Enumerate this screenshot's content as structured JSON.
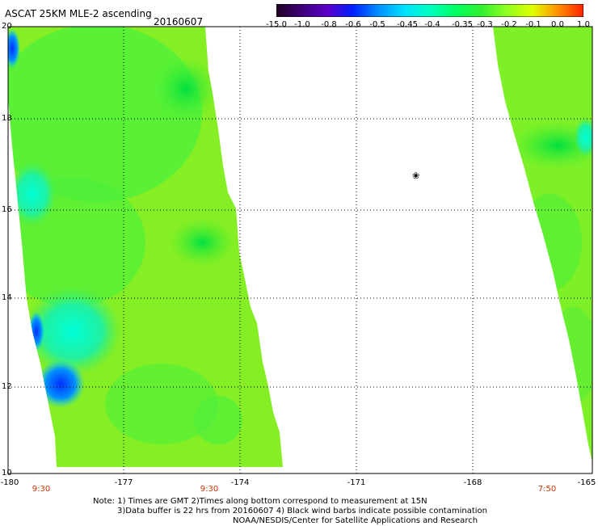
{
  "header": {
    "title": "ASCAT 25KM MLE-2 ascending",
    "date": "20160607"
  },
  "colorbar": {
    "labels": [
      "-15.0",
      "-1.0",
      "-0.8",
      "-0.6",
      "-0.5",
      "-0.45",
      "-0.4",
      "-0.35",
      "-0.3",
      "-0.2",
      "-0.1",
      "0.0",
      "1.0"
    ],
    "colors": [
      "#200020",
      "#3d007a",
      "#5b00c8",
      "#0020ff",
      "#0090ff",
      "#00e0ff",
      "#00ffc0",
      "#00ff60",
      "#30f030",
      "#90ff20",
      "#e0ff00",
      "#ff9000",
      "#ff2000"
    ]
  },
  "axes": {
    "y_ticks": [
      "20",
      "18",
      "16",
      "14",
      "12",
      "10"
    ],
    "x_ticks": [
      "-180",
      "-177",
      "-174",
      "-171",
      "-168",
      "-165"
    ],
    "time_labels": [
      "9:30",
      "9:30",
      "7:50"
    ]
  },
  "annotation": {
    "barb_symbol": "❀"
  },
  "notes": {
    "line1": "Note: 1) Times are GMT 2)Times along bottom correspond to measurement at 15N",
    "line2": "3)Data buffer is 22 hrs from 20160607 4) Black wind barbs indicate possible contamination",
    "line3": "NOAA/NESDIS/Center for Satellite Applications and Research"
  },
  "colors": {
    "swath_green": "#3df03d",
    "swath_yellow_green": "#8cf020",
    "cyan": "#00f0e0",
    "blue": "#0050ff",
    "time_label": "#cc3300"
  }
}
